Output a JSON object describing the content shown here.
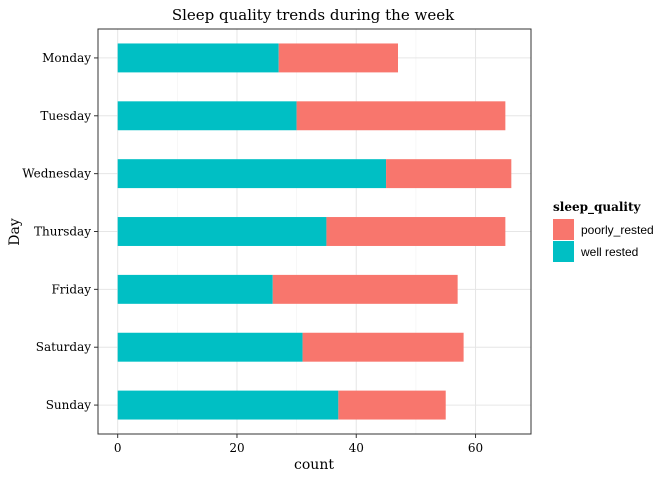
{
  "chart_data": {
    "type": "bar",
    "orientation": "horizontal",
    "stacked": true,
    "title": "Sleep quality trends during the week",
    "xlabel": "count",
    "ylabel": "Day",
    "categories": [
      "Monday",
      "Tuesday",
      "Wednesday",
      "Thursday",
      "Friday",
      "Saturday",
      "Sunday"
    ],
    "series": [
      {
        "name": "poorly_rested",
        "color": "#F8766D",
        "values": [
          20,
          35,
          21,
          30,
          31,
          27,
          18
        ]
      },
      {
        "name": "well rested",
        "color": "#00BFC4",
        "values": [
          27,
          30,
          45,
          35,
          26,
          31,
          37
        ]
      }
    ],
    "xlim": [
      -3.3,
      69.3
    ],
    "xticks": [
      0,
      20,
      40,
      60
    ],
    "grid": true,
    "legend": {
      "title": "sleep_quality",
      "placement": "right"
    }
  }
}
